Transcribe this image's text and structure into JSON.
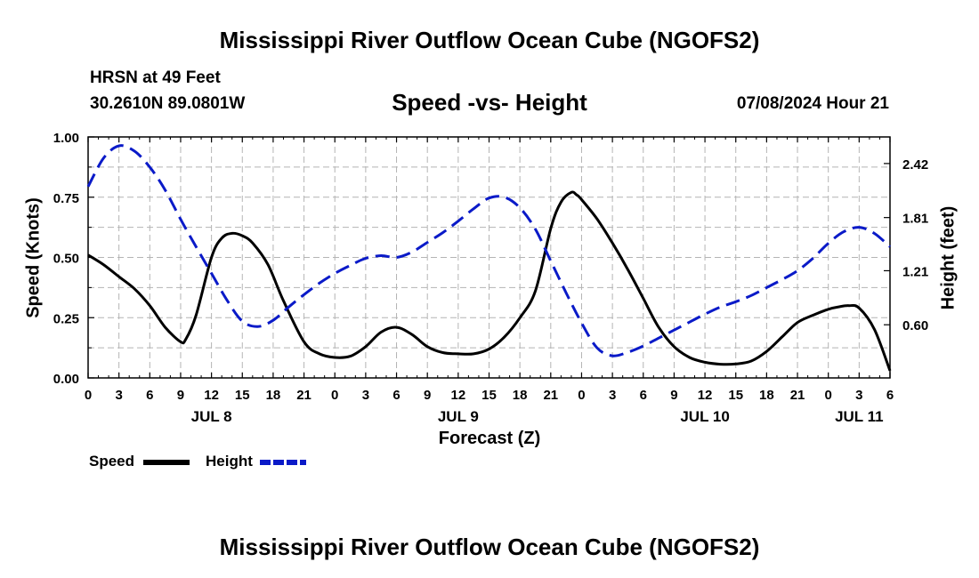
{
  "header": {
    "title": "Mississippi River Outflow Ocean Cube (NGOFS2)",
    "station": "HRSN at 49 Feet",
    "coordinates": "30.2610N  89.0801W",
    "subtitle": "Speed -vs- Height",
    "datestamp": "07/08/2024 Hour 21"
  },
  "footer": {
    "title": "Mississippi River Outflow Ocean Cube (NGOFS2)"
  },
  "chart_data": {
    "type": "line",
    "xlabel": "Forecast (Z)",
    "ylabel_left": "Speed (Knots)",
    "ylabel_right": "Height (feet)",
    "xlim": [
      0,
      78
    ],
    "ylim_left": [
      0,
      1.0
    ],
    "ylim_right": [
      0.0,
      2.72
    ],
    "grid": true,
    "x_tick_values": [
      0,
      3,
      6,
      9,
      12,
      15,
      18,
      21,
      24,
      27,
      30,
      33,
      36,
      39,
      42,
      45,
      48,
      51,
      54,
      57,
      60,
      63,
      66,
      69,
      72,
      75,
      78
    ],
    "x_tick_labels": [
      "0",
      "3",
      "6",
      "9",
      "12",
      "15",
      "18",
      "21",
      "0",
      "3",
      "6",
      "9",
      "12",
      "15",
      "18",
      "21",
      "0",
      "3",
      "6",
      "9",
      "12",
      "15",
      "18",
      "21",
      "0",
      "3",
      "6"
    ],
    "date_labels": [
      {
        "x": 12,
        "label": "JUL 8"
      },
      {
        "x": 36,
        "label": "JUL 9"
      },
      {
        "x": 60,
        "label": "JUL 10"
      },
      {
        "x": 75,
        "label": "JUL 11"
      }
    ],
    "y_left_ticks": [
      0.0,
      0.25,
      0.5,
      0.75,
      1.0
    ],
    "y_left_tick_labels": [
      "0.00",
      "0.25",
      "0.50",
      "0.75",
      "1.00"
    ],
    "y_right_ticks": [
      0.6,
      1.21,
      1.81,
      2.42
    ],
    "y_right_tick_labels": [
      "0.60",
      "1.21",
      "1.81",
      "2.42"
    ],
    "series": [
      {
        "name": "Speed",
        "axis": "left",
        "color": "#000000",
        "dash": "solid",
        "x": [
          0,
          1.5,
          3,
          4.5,
          6,
          7.5,
          9,
          9.5,
          10.5,
          12,
          13,
          14,
          15,
          16,
          17.5,
          19,
          21,
          22.5,
          24,
          25.5,
          27,
          28.5,
          30,
          31.5,
          33,
          34.5,
          36,
          37.5,
          39,
          40.5,
          42,
          43.5,
          45,
          46,
          47,
          47.5,
          48,
          49.5,
          51,
          52.5,
          54,
          55.5,
          57,
          58.5,
          60,
          61.5,
          63,
          64.5,
          66,
          67.5,
          69,
          70.5,
          72,
          73,
          74,
          75,
          76.5,
          78
        ],
        "values": [
          0.51,
          0.47,
          0.42,
          0.37,
          0.3,
          0.21,
          0.15,
          0.16,
          0.26,
          0.5,
          0.58,
          0.6,
          0.59,
          0.56,
          0.47,
          0.32,
          0.15,
          0.1,
          0.085,
          0.09,
          0.13,
          0.19,
          0.21,
          0.18,
          0.13,
          0.105,
          0.1,
          0.1,
          0.12,
          0.17,
          0.25,
          0.36,
          0.62,
          0.73,
          0.77,
          0.76,
          0.74,
          0.66,
          0.56,
          0.45,
          0.33,
          0.21,
          0.13,
          0.085,
          0.065,
          0.057,
          0.058,
          0.07,
          0.11,
          0.17,
          0.23,
          0.26,
          0.285,
          0.295,
          0.3,
          0.29,
          0.2,
          0.03
        ]
      },
      {
        "name": "Height",
        "axis": "right",
        "color": "#0a1ac8",
        "dash": "dashed",
        "x": [
          0,
          1.5,
          3,
          4.5,
          6,
          7.5,
          9,
          10.5,
          12,
          13.5,
          15,
          16.5,
          18,
          19.5,
          21,
          22.5,
          24,
          25.5,
          27,
          28.5,
          30,
          31.5,
          33,
          34.5,
          36,
          37.5,
          39,
          40.5,
          42,
          43.5,
          45,
          46.5,
          48,
          49.5,
          51,
          52.5,
          54,
          55.5,
          57,
          58.5,
          60,
          61.5,
          63,
          64.5,
          66,
          67.5,
          69,
          70.5,
          72,
          73.5,
          75,
          76.5,
          78
        ],
        "values": [
          2.16,
          2.48,
          2.62,
          2.56,
          2.38,
          2.12,
          1.79,
          1.48,
          1.18,
          0.88,
          0.64,
          0.58,
          0.65,
          0.8,
          0.94,
          1.07,
          1.18,
          1.27,
          1.35,
          1.38,
          1.36,
          1.42,
          1.53,
          1.64,
          1.77,
          1.91,
          2.03,
          2.04,
          1.92,
          1.68,
          1.32,
          0.96,
          0.62,
          0.34,
          0.25,
          0.29,
          0.36,
          0.45,
          0.54,
          0.63,
          0.72,
          0.8,
          0.86,
          0.93,
          1.02,
          1.11,
          1.21,
          1.35,
          1.52,
          1.65,
          1.7,
          1.63,
          1.48
        ]
      }
    ],
    "legend": [
      {
        "label": "Speed",
        "color": "#000000",
        "dash": "solid"
      },
      {
        "label": "Height",
        "color": "#0a1ac8",
        "dash": "dashed"
      }
    ],
    "legend_position": "bottom-left"
  }
}
